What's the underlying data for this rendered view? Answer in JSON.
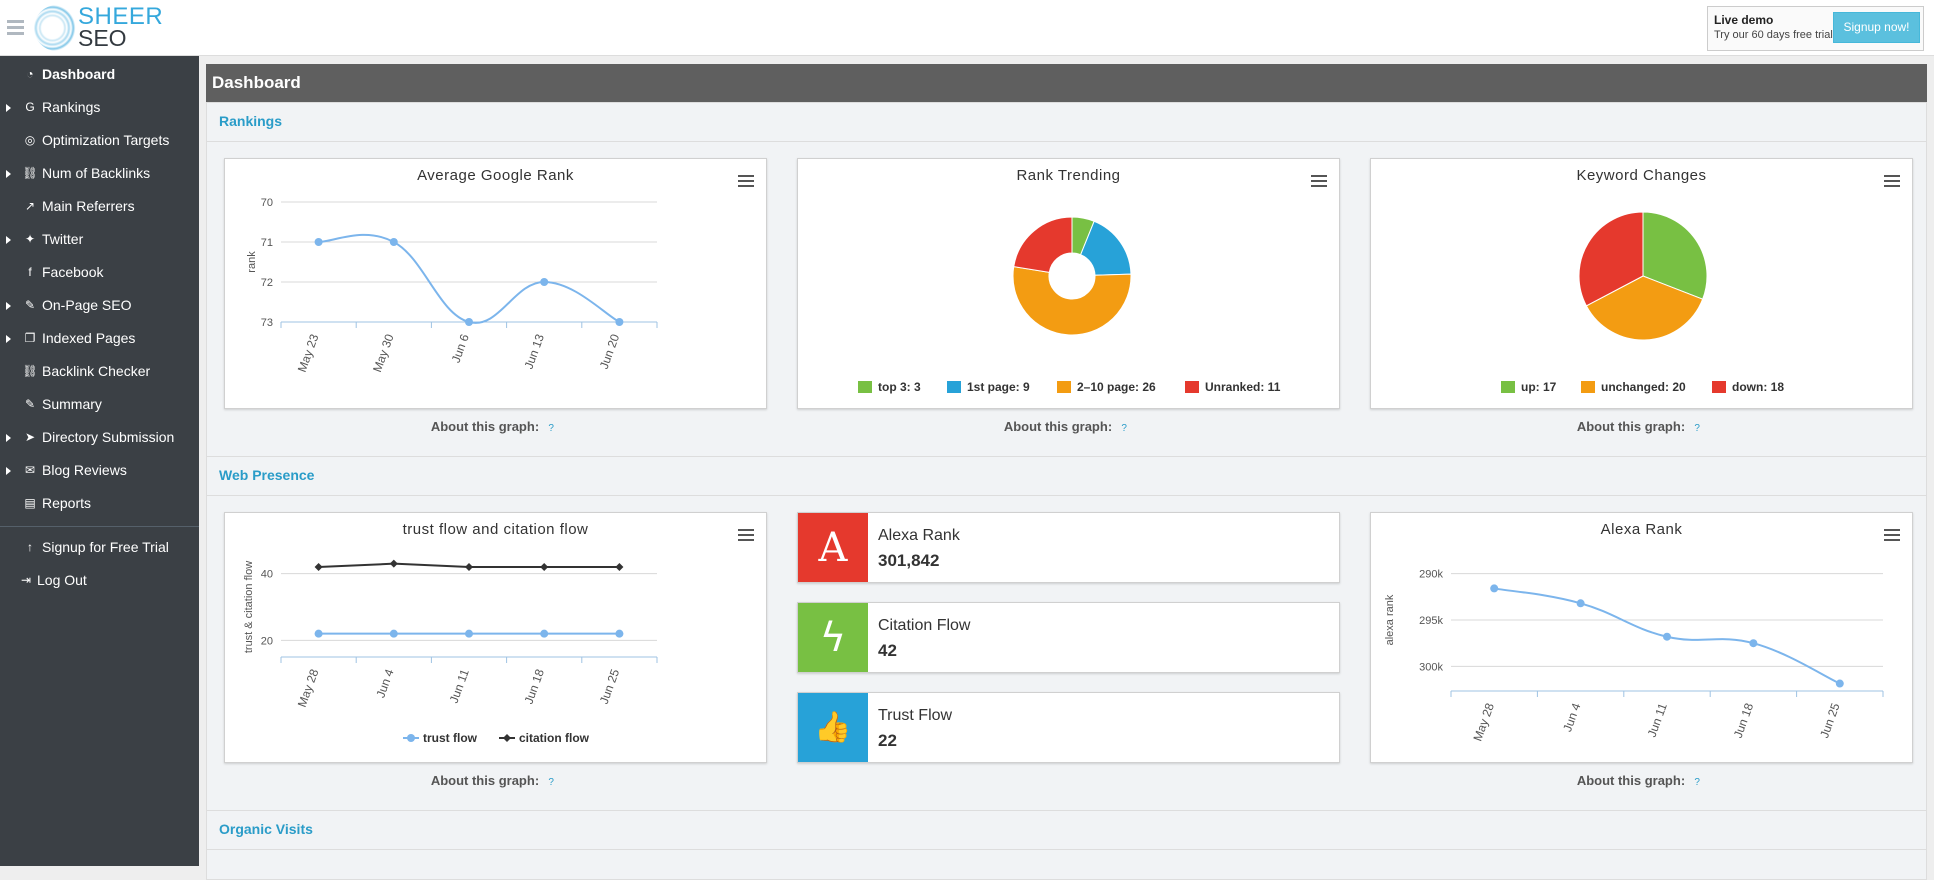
{
  "logo": {
    "top": "SHEER",
    "bottom": "SEO"
  },
  "topbar": {
    "demo_title": "Live demo",
    "demo_sub": "Try our 60 days free trial:",
    "signup_label": "Signup now!"
  },
  "sidebar": {
    "items": [
      {
        "label": "Dashboard",
        "icon": "dashboard-icon",
        "glyph": "◔",
        "caret": false,
        "active": true
      },
      {
        "label": "Rankings",
        "icon": "google-icon",
        "glyph": "G",
        "caret": true
      },
      {
        "label": "Optimization Targets",
        "icon": "target-icon",
        "glyph": "◎",
        "caret": false
      },
      {
        "label": "Num of Backlinks",
        "icon": "link-icon",
        "glyph": "⛓",
        "caret": true
      },
      {
        "label": "Main Referrers",
        "icon": "external-link-icon",
        "glyph": "↗",
        "caret": false
      },
      {
        "label": "Twitter",
        "icon": "twitter-icon",
        "glyph": "✦",
        "caret": true
      },
      {
        "label": "Facebook",
        "icon": "facebook-icon",
        "glyph": "f",
        "caret": false
      },
      {
        "label": "On-Page SEO",
        "icon": "magic-icon",
        "glyph": "✎",
        "caret": true
      },
      {
        "label": "Indexed Pages",
        "icon": "copy-icon",
        "glyph": "❐",
        "caret": true
      },
      {
        "label": "Backlink Checker",
        "icon": "link-icon",
        "glyph": "⛓",
        "caret": false
      },
      {
        "label": "Summary",
        "icon": "edit-icon",
        "glyph": "✎",
        "caret": false
      },
      {
        "label": "Directory Submission",
        "icon": "send-icon",
        "glyph": "➤",
        "caret": true
      },
      {
        "label": "Blog Reviews",
        "icon": "comments-icon",
        "glyph": "✉",
        "caret": true
      },
      {
        "label": "Reports",
        "icon": "pdf-icon",
        "glyph": "▤",
        "caret": false
      }
    ],
    "bottom_items": [
      {
        "label": "Signup for Free Trial",
        "icon": "upload-icon",
        "glyph": "↑"
      },
      {
        "label": "Log Out",
        "icon": "sign-out-icon",
        "glyph": "⇥"
      }
    ]
  },
  "dashboard": {
    "title": "Dashboard"
  },
  "sections": {
    "rankings": "Rankings",
    "web_presence": "Web Presence",
    "organic_visits": "Organic Visits"
  },
  "about_label": "About this graph:",
  "about_q": "?",
  "stats": [
    {
      "label": "Alexa Rank",
      "value": "301,842",
      "color": "#e5392d",
      "icon": "alexa-icon",
      "glyph": "A"
    },
    {
      "label": "Citation Flow",
      "value": "42",
      "color": "#78c043",
      "icon": "bolt-icon",
      "glyph": "ϟ"
    },
    {
      "label": "Trust Flow",
      "value": "22",
      "color": "#27a2d8",
      "icon": "thumbs-up-icon",
      "glyph": "👍"
    }
  ],
  "chart_data": [
    {
      "type": "line",
      "title": "Average Google Rank",
      "ylabel": "rank",
      "reversed": true,
      "ylim": [
        70,
        73
      ],
      "yticks": [
        70,
        71,
        72,
        73
      ],
      "categories": [
        "May 23",
        "May 30",
        "Jun 6",
        "Jun 13",
        "Jun 20"
      ],
      "series": [
        {
          "values": [
            71,
            71,
            73,
            72,
            73
          ],
          "color": "#7cb5ec"
        }
      ]
    },
    {
      "type": "pie",
      "donut": true,
      "title": "Rank Trending",
      "slices": [
        {
          "name": "top 3",
          "value": 3,
          "color": "#78c043"
        },
        {
          "name": "1st page",
          "value": 9,
          "color": "#27a2d8"
        },
        {
          "name": "2–10 page",
          "value": 26,
          "color": "#f39c12"
        },
        {
          "name": "Unranked",
          "value": 11,
          "color": "#e5392d"
        }
      ],
      "legend": [
        "top 3: 3",
        "1st page: 9",
        "2–10 page: 26",
        "Unranked: 11"
      ]
    },
    {
      "type": "pie",
      "donut": false,
      "title": "Keyword Changes",
      "slices": [
        {
          "name": "up",
          "value": 17,
          "color": "#78c043"
        },
        {
          "name": "unchanged",
          "value": 20,
          "color": "#f39c12"
        },
        {
          "name": "down",
          "value": 18,
          "color": "#e5392d"
        }
      ],
      "legend": [
        "up: 17",
        "unchanged: 20",
        "down: 18"
      ]
    },
    {
      "type": "line",
      "title": "trust flow and citation flow",
      "ylabel": "trust & citation flow",
      "ylim": [
        15,
        45
      ],
      "yticks": [
        20,
        40
      ],
      "categories": [
        "May 28",
        "Jun 4",
        "Jun 11",
        "Jun 18",
        "Jun 25"
      ],
      "series": [
        {
          "name": "trust flow",
          "values": [
            22,
            22,
            22,
            22,
            22
          ],
          "color": "#7cb5ec",
          "marker": "circle"
        },
        {
          "name": "citation flow",
          "values": [
            42,
            43,
            42,
            42,
            42
          ],
          "color": "#333333",
          "marker": "diamond"
        }
      ]
    },
    {
      "type": "line",
      "title": "Alexa Rank",
      "ylabel": "alexa rank",
      "reversed": true,
      "ylim": [
        288000,
        302000
      ],
      "yticks": [
        290000,
        295000,
        300000
      ],
      "ytick_labels": [
        "290k",
        "295k",
        "300k"
      ],
      "categories": [
        "May 28",
        "Jun 4",
        "Jun 11",
        "Jun 18",
        "Jun 25"
      ],
      "series": [
        {
          "values": [
            291600,
            293200,
            296800,
            297500,
            301842
          ],
          "color": "#7cb5ec"
        }
      ]
    }
  ]
}
